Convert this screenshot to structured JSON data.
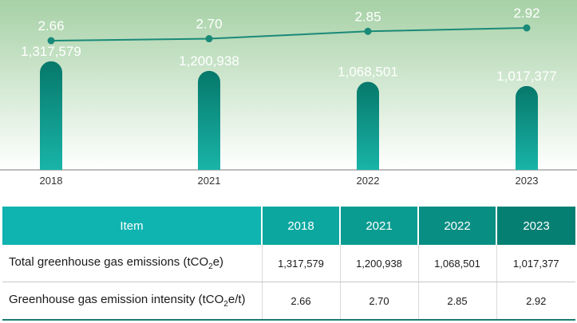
{
  "colors": {
    "line": "#1a8a78",
    "bar_top": "#06786a",
    "bar_bottom": "#19b4a8",
    "bg_top": "#a6d1a6",
    "bg_bottom": "#ffffff"
  },
  "chart_data": {
    "type": "bar+line",
    "categories": [
      "2018",
      "2021",
      "2022",
      "2023"
    ],
    "series": [
      {
        "type": "bar",
        "values": [
          1317579,
          1200938,
          1068501,
          1017377
        ],
        "labels": [
          "1,317,579",
          "1,200,938",
          "1,068,501",
          "1,017,377"
        ]
      },
      {
        "type": "line",
        "values": [
          2.66,
          2.7,
          2.85,
          2.92
        ],
        "labels": [
          "2.66",
          "2.70",
          "2.85",
          "2.92"
        ]
      }
    ],
    "bar_ylim": [
      0,
      1500000
    ],
    "line_ylim": [
      2.4,
      3.0
    ],
    "grid": false,
    "legend": "none"
  },
  "table": {
    "header": {
      "item": "Item",
      "years": [
        "2018",
        "2021",
        "2022",
        "2023"
      ]
    },
    "rows": [
      {
        "label_main": "Total greenhouse gas emissions (tCO",
        "label_sub": "2",
        "label_tail": "e)",
        "values": [
          "1,317,579",
          "1,200,938",
          "1,068,501",
          "1,017,377"
        ]
      },
      {
        "label_main": "Greenhouse gas emission intensity (tCO",
        "label_sub": "2",
        "label_tail": "e/t)",
        "values": [
          "2.66",
          "2.70",
          "2.85",
          "2.92"
        ]
      }
    ]
  }
}
